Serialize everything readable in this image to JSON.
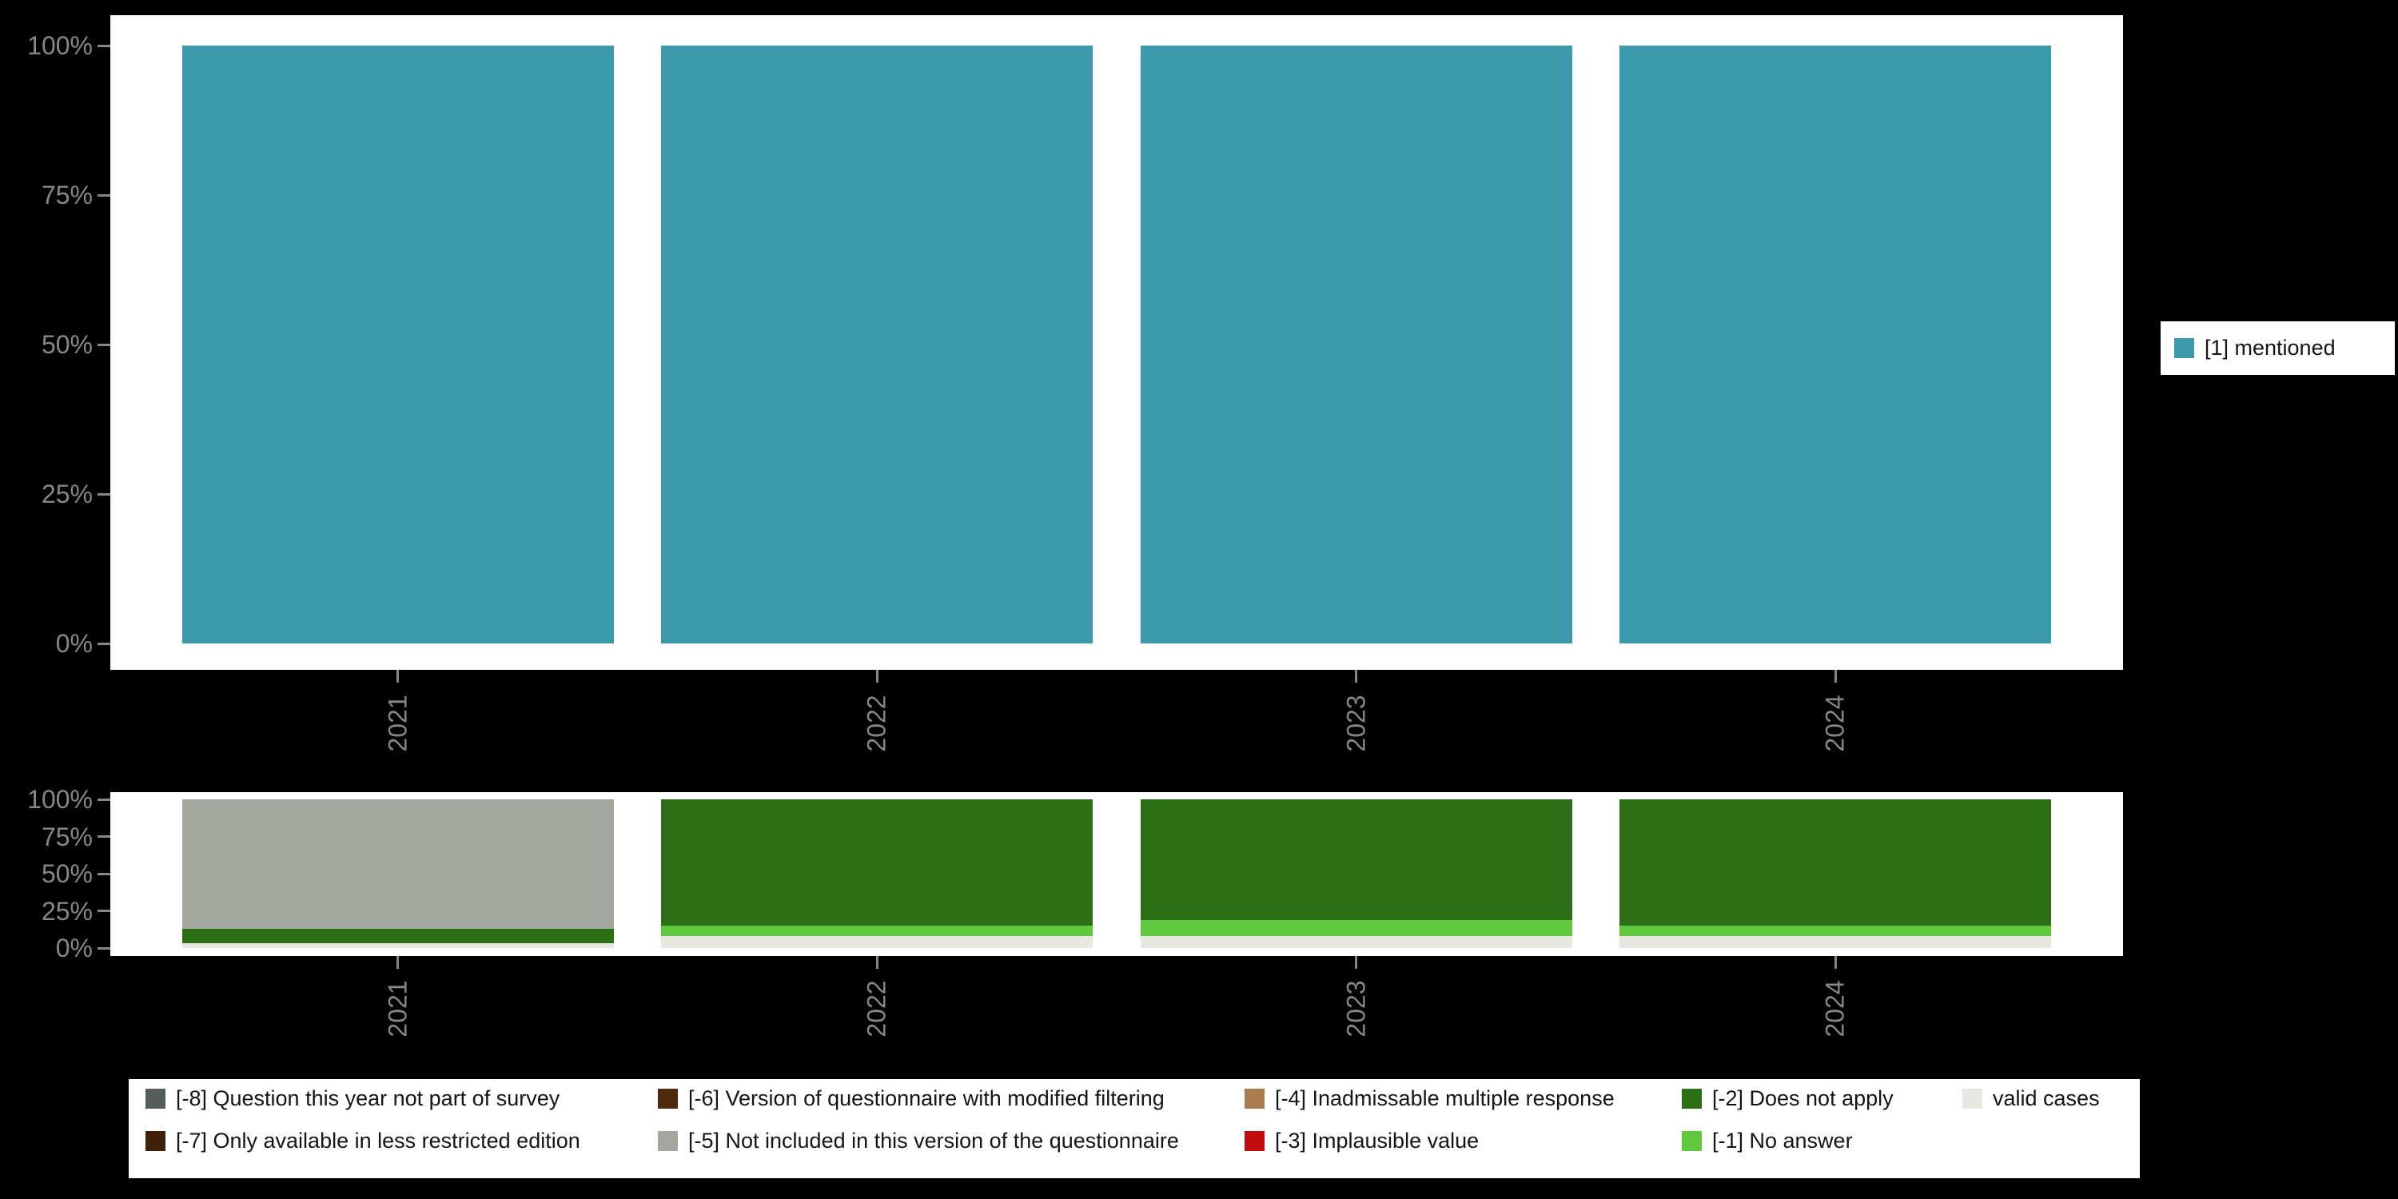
{
  "background_color": "#000000",
  "axis_text_color": "#878787",
  "chart_data": [
    {
      "type": "bar",
      "title": "",
      "categories": [
        "2021",
        "2022",
        "2023",
        "2024"
      ],
      "series": [
        {
          "name": "[1] mentioned",
          "color": "#3d99ac",
          "values": [
            100,
            100,
            100,
            100
          ]
        }
      ],
      "xlabel": "",
      "ylabel": "",
      "y_tick_labels": [
        "0%",
        "25%",
        "50%",
        "75%",
        "100%"
      ],
      "ylim": [
        0,
        100
      ],
      "grid": false,
      "legend_position": "right"
    },
    {
      "type": "bar",
      "stacked": true,
      "title": "",
      "categories": [
        "2021",
        "2022",
        "2023",
        "2024"
      ],
      "series": [
        {
          "key": "-8",
          "name": "[-8] Question this year not part of survey",
          "color": "#535e5c",
          "values": [
            0,
            0,
            0,
            0
          ]
        },
        {
          "key": "-7",
          "name": "[-7] Only available in less restricted edition",
          "color": "#3f2008",
          "values": [
            0,
            0,
            0,
            0
          ]
        },
        {
          "key": "-6",
          "name": "[-6] Version of questionnaire with modified filtering",
          "color": "#4f2a0c",
          "values": [
            0,
            0,
            0,
            0
          ]
        },
        {
          "key": "-5",
          "name": "[-5] Not included in this version of the questionnaire",
          "color": "#a4a79f",
          "values": [
            87,
            0,
            0,
            0
          ]
        },
        {
          "key": "-4",
          "name": "[-4] Inadmissable multiple response",
          "color": "#a87e50",
          "values": [
            0,
            0,
            0,
            0
          ]
        },
        {
          "key": "-3",
          "name": "[-3] Implausible value",
          "color": "#c00c0c",
          "values": [
            0,
            0,
            0,
            0
          ]
        },
        {
          "key": "-2",
          "name": "[-2] Does not apply",
          "color": "#2b7016",
          "values": [
            10,
            85,
            81,
            85
          ]
        },
        {
          "key": "-1",
          "name": "[-1] No answer",
          "color": "#5fc83c",
          "values": [
            0,
            7,
            11,
            7
          ]
        },
        {
          "key": "valid",
          "name": "valid cases",
          "color": "#e8e8e3",
          "values": [
            3,
            8,
            8,
            8
          ]
        }
      ],
      "y_tick_labels": [
        "0%",
        "25%",
        "50%",
        "75%",
        "100%"
      ],
      "ylim": [
        0,
        100
      ],
      "grid": false,
      "legend_position": "bottom"
    }
  ],
  "legend_right": {
    "items": [
      {
        "label": "[1] mentioned",
        "color": "#3d99ac"
      }
    ]
  },
  "missing_legend": {
    "columns": [
      [
        {
          "label": "[-8] Question this year not part of survey",
          "color": "#535e5c"
        },
        {
          "label": "[-7] Only available in less restricted edition",
          "color": "#3f2008"
        }
      ],
      [
        {
          "label": "[-6] Version of questionnaire with modified filtering",
          "color": "#4f2a0c"
        },
        {
          "label": "[-5] Not included in this version of the questionnaire",
          "color": "#a4a79f"
        }
      ],
      [
        {
          "label": "[-4] Inadmissable multiple response",
          "color": "#a87e50"
        },
        {
          "label": "[-3] Implausible value",
          "color": "#c00c0c"
        }
      ],
      [
        {
          "label": "[-2] Does not apply",
          "color": "#2b7016"
        },
        {
          "label": "[-1] No answer",
          "color": "#5fc83c"
        }
      ],
      [
        {
          "label": "valid cases",
          "color": "#e8e8e3"
        }
      ]
    ]
  }
}
